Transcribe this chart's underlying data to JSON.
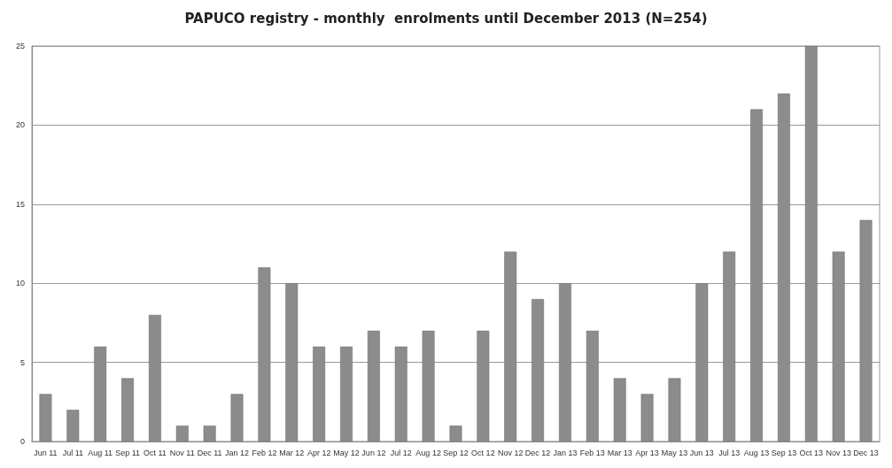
{
  "chart_data": {
    "type": "bar",
    "title": "PAPUCO registry - monthly  enrolments until December 2013 (N=254)",
    "categories": [
      "Jun 11",
      "Jul 11",
      "Aug 11",
      "Sep 11",
      "Oct 11",
      "Nov 11",
      "Dec 11",
      "Jan 12",
      "Feb 12",
      "Mar 12",
      "Apr 12",
      "May 12",
      "Jun 12",
      "Jul 12",
      "Aug 12",
      "Sep 12",
      "Oct 12",
      "Nov 12",
      "Dec 12",
      "Jan 13",
      "Feb 13",
      "Mar 13",
      "Apr 13",
      "May 13",
      "Jun 13",
      "Jul 13",
      "Aug 13",
      "Sep 13",
      "Oct 13",
      "Nov 13",
      "Dec 13"
    ],
    "values": [
      3,
      2,
      6,
      4,
      8,
      1,
      1,
      3,
      11,
      10,
      6,
      6,
      7,
      6,
      7,
      1,
      7,
      12,
      9,
      10,
      7,
      4,
      3,
      4,
      10,
      12,
      21,
      22,
      25,
      12,
      14
    ],
    "color": "#8c8c8c",
    "ylim": [
      0,
      25
    ],
    "yticks": [
      0,
      5,
      10,
      15,
      20,
      25
    ],
    "grid": "y"
  }
}
